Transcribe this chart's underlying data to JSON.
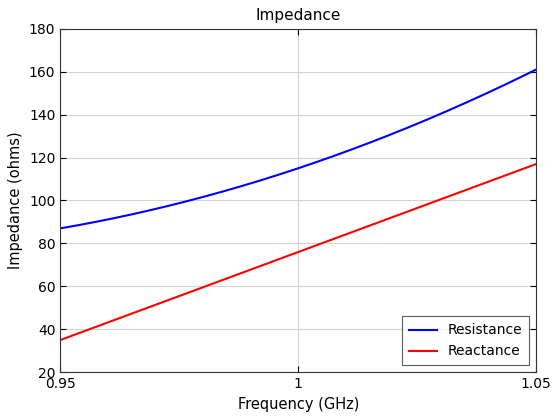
{
  "title": "Impedance",
  "xlabel": "Frequency (GHz)",
  "ylabel": "Impedance (ohms)",
  "xlim": [
    0.95,
    1.05
  ],
  "ylim": [
    20,
    180
  ],
  "xticks": [
    0.95,
    1.0,
    1.05
  ],
  "yticks": [
    20,
    40,
    60,
    80,
    100,
    120,
    140,
    160,
    180
  ],
  "resistance_color": "#0000FF",
  "reactance_color": "#FF0000",
  "resistance_label": "Resistance",
  "reactance_label": "Reactance",
  "line_width": 1.5,
  "background_color": "#ffffff",
  "grid_color": "#d3d3d3",
  "resistance_points": [
    [
      0.95,
      87
    ],
    [
      1.0,
      115
    ],
    [
      1.05,
      161
    ]
  ],
  "reactance_points": [
    [
      0.95,
      35
    ],
    [
      1.0,
      80
    ],
    [
      1.05,
      117
    ]
  ]
}
